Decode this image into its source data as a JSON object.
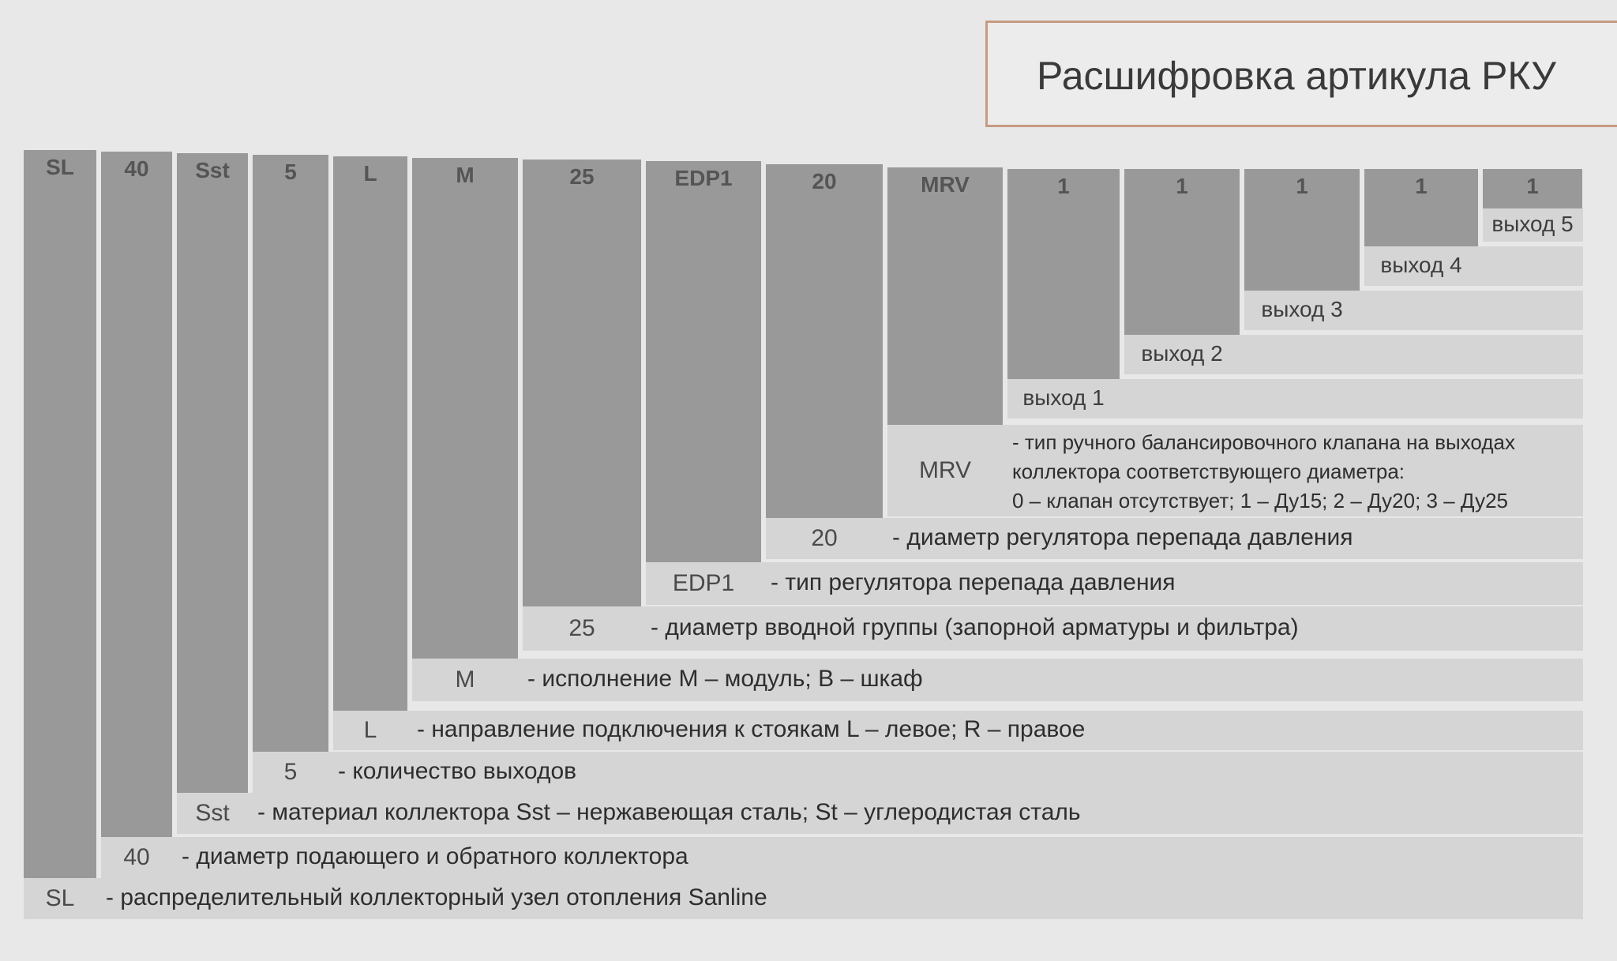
{
  "title": "Расшифровка артикула РКУ",
  "segments": [
    {
      "code": "SL",
      "description": "- распределительный коллекторный узел отопления Sanline"
    },
    {
      "code": "40",
      "description": "- диаметр подающего и обратного коллектора"
    },
    {
      "code": "Sst",
      "description": "- материал коллектора Sst – нержавеющая сталь; St – углеродистая сталь"
    },
    {
      "code": "5",
      "description": "- количество выходов"
    },
    {
      "code": "L",
      "description": "- направление подключения к стоякам L – левое; R – правое"
    },
    {
      "code": "M",
      "description": "- исполнение М – модуль; В – шкаф"
    },
    {
      "code": "25",
      "description": "- диаметр вводной группы (запорной арматуры и фильтра)"
    },
    {
      "code": "EDP1",
      "description": "- тип регулятора перепада давления"
    },
    {
      "code": "20",
      "description": "- диаметр регулятора перепада давления"
    },
    {
      "code": "MRV",
      "description_lines": [
        "- тип ручного балансировочного клапана на выходах",
        "коллектора соответствующего диаметра:",
        "0 – клапан отсутствует;  1 – Ду15; 2 – Ду20; 3 – Ду25"
      ]
    },
    {
      "code": "1",
      "out_label": "выход 1"
    },
    {
      "code": "1",
      "out_label": "выход 2"
    },
    {
      "code": "1",
      "out_label": "выход 3"
    },
    {
      "code": "1",
      "out_label": "выход 4"
    },
    {
      "code": "1",
      "out_label": "выход 5"
    }
  ]
}
